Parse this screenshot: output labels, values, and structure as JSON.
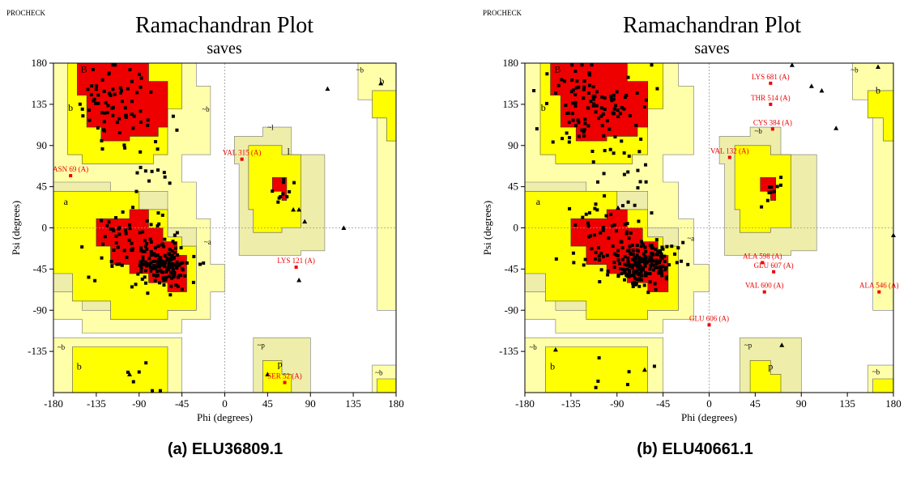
{
  "program_label": "PROCHECK",
  "colors": {
    "core": "#ee0000",
    "allowed": "#ffff00",
    "generous": "#ffffaa",
    "generous2": "#eeeeaa",
    "outlier": "#ee0000",
    "point": "#000000"
  },
  "chart_data": [
    {
      "type": "scatter",
      "title": "Ramachandran Plot",
      "subtitle": "saves",
      "xlabel": "Phi (degrees)",
      "ylabel": "Psi (degrees)",
      "xlim": [
        -180,
        180
      ],
      "ylim": [
        -180,
        180
      ],
      "xticks": [
        "-180",
        "-135",
        "-90",
        "-45",
        "0",
        "45",
        "90",
        "135",
        "180"
      ],
      "yticks": [
        "180",
        "135",
        "90",
        "45",
        "0",
        "-45",
        "-90",
        "-135"
      ],
      "region_labels": [
        {
          "text": "B",
          "phi": -148,
          "psi": 170
        },
        {
          "text": "b",
          "phi": -162,
          "psi": 128
        },
        {
          "text": "~b",
          "phi": -20,
          "psi": 127
        },
        {
          "text": "~b",
          "phi": 142,
          "psi": 170
        },
        {
          "text": "b",
          "phi": 165,
          "psi": 157
        },
        {
          "text": "~l",
          "phi": 48,
          "psi": 107
        },
        {
          "text": "l",
          "phi": 67,
          "psi": 80
        },
        {
          "text": "a",
          "phi": -167,
          "psi": 25
        },
        {
          "text": "~a",
          "phi": -18,
          "psi": -18
        },
        {
          "text": "~b",
          "phi": -172,
          "psi": -133
        },
        {
          "text": "b",
          "phi": -153,
          "psi": -155
        },
        {
          "text": "~p",
          "phi": 38,
          "psi": -131
        },
        {
          "text": "p",
          "phi": 58,
          "psi": -152
        },
        {
          "text": "~b",
          "phi": 162,
          "psi": -161
        }
      ],
      "outlier_labels": [
        {
          "text": "VAL 315 (A)",
          "phi": 18,
          "psi": 75
        },
        {
          "text": "ASN 69 (A)",
          "phi": -162,
          "psi": 57
        },
        {
          "text": "LYS 121 (A)",
          "phi": 75,
          "psi": -43
        },
        {
          "text": "SER 52 (A)",
          "phi": 63,
          "psi": -169
        }
      ],
      "glycine_points": [
        {
          "phi": 108,
          "psi": 152
        },
        {
          "phi": 164,
          "psi": 158
        },
        {
          "phi": 125,
          "psi": 0
        },
        {
          "phi": 78,
          "psi": -57
        },
        {
          "phi": 84,
          "psi": 7
        },
        {
          "phi": 78,
          "psi": 20
        },
        {
          "phi": 72,
          "psi": 20
        },
        {
          "phi": -100,
          "psi": -160
        },
        {
          "phi": 45,
          "psi": -160
        }
      ]
    },
    {
      "type": "scatter",
      "title": "Ramachandran Plot",
      "subtitle": "saves",
      "xlabel": "Phi (degrees)",
      "ylabel": "Psi (degrees)",
      "xlim": [
        -180,
        180
      ],
      "ylim": [
        -180,
        180
      ],
      "xticks": [
        "-180",
        "-135",
        "-90",
        "-45",
        "0",
        "45",
        "90",
        "135",
        "180"
      ],
      "yticks": [
        "180",
        "135",
        "90",
        "45",
        "0",
        "-45",
        "-90",
        "-135"
      ],
      "region_labels": [
        {
          "text": "B",
          "phi": -148,
          "psi": 170
        },
        {
          "text": "b",
          "phi": -162,
          "psi": 128
        },
        {
          "text": "~b",
          "phi": 48,
          "psi": 103
        },
        {
          "text": "~b",
          "phi": 142,
          "psi": 170
        },
        {
          "text": "b",
          "phi": 165,
          "psi": 147
        },
        {
          "text": "a",
          "phi": -167,
          "psi": 25
        },
        {
          "text": "~a",
          "phi": -18,
          "psi": -14
        },
        {
          "text": "~b",
          "phi": -172,
          "psi": -133
        },
        {
          "text": "b",
          "phi": -153,
          "psi": -155
        },
        {
          "text": "~p",
          "phi": 38,
          "psi": -131
        },
        {
          "text": "p",
          "phi": 60,
          "psi": -155
        },
        {
          "text": "~b",
          "phi": 163,
          "psi": -160
        }
      ],
      "outlier_labels": [
        {
          "text": "LYS 681 (A)",
          "phi": 60,
          "psi": 158
        },
        {
          "text": "THR 514 (A)",
          "phi": 60,
          "psi": 135
        },
        {
          "text": "CYS 384 (A)",
          "phi": 62,
          "psi": 108
        },
        {
          "text": "VAL 132 (A)",
          "phi": 20,
          "psi": 77
        },
        {
          "text": "ALA 598 (A)",
          "phi": 52,
          "psi": -38
        },
        {
          "text": "GLU 607 (A)",
          "phi": 63,
          "psi": -48
        },
        {
          "text": "VAL 600 (A)",
          "phi": 54,
          "psi": -70
        },
        {
          "text": "ALA 546 (A)",
          "phi": 166,
          "psi": -70
        },
        {
          "text": "GLU 606 (A)",
          "phi": 0,
          "psi": -106
        }
      ],
      "glycine_points": [
        {
          "phi": 81,
          "psi": 178
        },
        {
          "phi": 100,
          "psi": 155
        },
        {
          "phi": 110,
          "psi": 150
        },
        {
          "phi": 124,
          "psi": 109
        },
        {
          "phi": 165,
          "psi": 176
        },
        {
          "phi": 180,
          "psi": -8
        },
        {
          "phi": 71,
          "psi": -128
        },
        {
          "phi": -150,
          "psi": -133
        },
        {
          "phi": -63,
          "psi": -155
        },
        {
          "phi": -89,
          "psi": 22
        }
      ]
    }
  ],
  "captions": [
    "(a) ELU36809.1",
    "(b) ELU40661.1"
  ]
}
